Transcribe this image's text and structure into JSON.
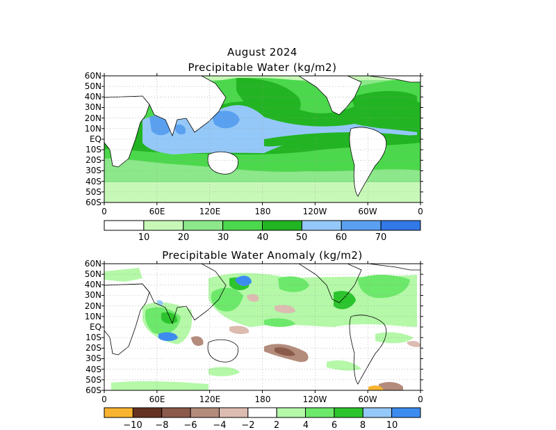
{
  "map1": {
    "title_line1": "August 2024",
    "title_line2": "Precipitable Water (kg/m2)",
    "lat_labels": [
      "60N",
      "50N",
      "40N",
      "30N",
      "20N",
      "10N",
      "EQ",
      "10S",
      "20S",
      "30S",
      "40S",
      "50S",
      "60S"
    ],
    "lon_labels": [
      "0",
      "60E",
      "120E",
      "180",
      "120W",
      "60W",
      "0"
    ],
    "colorbar": {
      "colors": [
        "#ffffff",
        "#c8f8b8",
        "#8ce88a",
        "#4cd84c",
        "#22b422",
        "#94c8f8",
        "#5aa0f0",
        "#3278e6"
      ],
      "labels": [
        "10",
        "20",
        "30",
        "40",
        "50",
        "60",
        "70"
      ]
    }
  },
  "map2": {
    "title": "Precipitable Water Anomaly (kg/m2)",
    "lat_labels": [
      "60N",
      "50N",
      "40N",
      "30N",
      "20N",
      "10N",
      "EQ",
      "10S",
      "20S",
      "30S",
      "40S",
      "50S",
      "60S"
    ],
    "lon_labels": [
      "0",
      "60E",
      "120E",
      "180",
      "120W",
      "60W",
      "0"
    ],
    "colorbar": {
      "colors": [
        "#f8b430",
        "#643222",
        "#8c5a4a",
        "#b48c7c",
        "#dcbcb0",
        "#ffffff",
        "#b4f8a8",
        "#6ce86a",
        "#2cc42c",
        "#94c8f8",
        "#3c8cf0"
      ],
      "labels": [
        "−10",
        "−8",
        "−6",
        "−4",
        "−2",
        "2",
        "4",
        "6",
        "8",
        "10"
      ]
    }
  }
}
